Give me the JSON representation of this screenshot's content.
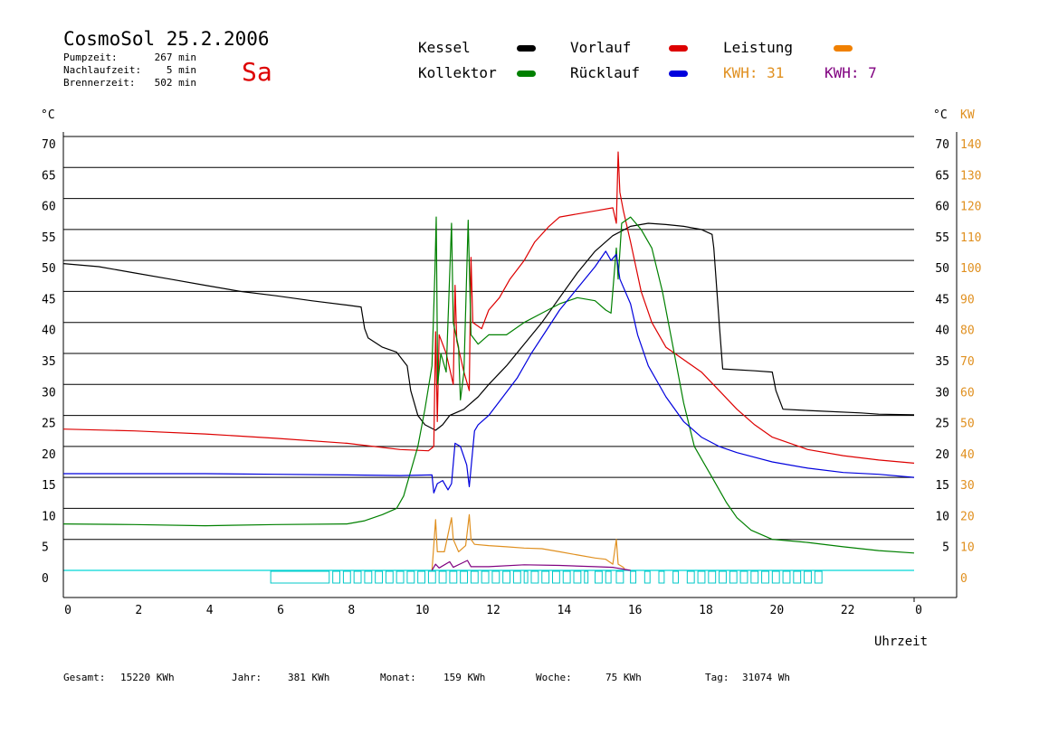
{
  "header": {
    "title": "CosmoSol 25.2.2006",
    "day": "Sa",
    "stats": [
      {
        "label": "Pumpzeit:",
        "value": "267 min"
      },
      {
        "label": "Nachlaufzeit:",
        "value": "5 min"
      },
      {
        "label": "Brennerzeit:",
        "value": "502 min"
      }
    ]
  },
  "legend": [
    {
      "name": "Kessel",
      "color": "#000000"
    },
    {
      "name": "Vorlauf",
      "color": "#dd0000"
    },
    {
      "name": "Leistung",
      "color": "#f08000"
    },
    {
      "name": "Kollektor",
      "color": "#008000"
    },
    {
      "name": "Rücklauf",
      "color": "#0000dd"
    }
  ],
  "kwh": [
    {
      "label": "KWH:",
      "value": "31",
      "color": "#e09020"
    },
    {
      "label": "KWH:",
      "value": "7",
      "color": "#800080"
    }
  ],
  "footer": [
    {
      "label": "Gesamt:",
      "value": "15220 KWh"
    },
    {
      "label": "Jahr:",
      "value": "381 KWh"
    },
    {
      "label": "Monat:",
      "value": "159 KWh"
    },
    {
      "label": "Woche:",
      "value": "75 KWh"
    },
    {
      "label": "Tag:",
      "value": "31074 Wh"
    }
  ],
  "chart_data": {
    "type": "line",
    "xlabel": "Uhrzeit",
    "ylabel_left": "°C",
    "ylabel_right_temp": "°C",
    "ylabel_right_power": "KW",
    "xlim": [
      0,
      24
    ],
    "ylim": [
      0,
      70
    ],
    "y2lim": [
      0,
      140
    ],
    "x_ticks": [
      "0",
      "2",
      "4",
      "6",
      "8",
      "10",
      "12",
      "14",
      "16",
      "18",
      "20",
      "22",
      "0"
    ],
    "y_ticks": [
      0,
      5,
      10,
      15,
      20,
      25,
      30,
      35,
      40,
      45,
      50,
      55,
      60,
      65,
      70
    ],
    "y2_ticks": [
      0,
      10,
      20,
      30,
      40,
      50,
      60,
      70,
      80,
      90,
      100,
      110,
      120,
      130,
      140
    ],
    "y_right_temp_ticks": [
      5,
      10,
      15,
      20,
      25,
      30,
      35,
      40,
      45,
      50,
      55,
      60,
      65,
      70
    ],
    "grid": true,
    "series": [
      {
        "name": "Kessel",
        "color": "#000000",
        "points": [
          [
            0,
            49.5
          ],
          [
            1,
            49
          ],
          [
            2,
            48
          ],
          [
            3,
            47
          ],
          [
            4,
            46
          ],
          [
            5,
            45
          ],
          [
            6,
            44.3
          ],
          [
            7,
            43.5
          ],
          [
            8,
            42.8
          ],
          [
            8.4,
            42.5
          ],
          [
            8.5,
            39
          ],
          [
            8.6,
            37.5
          ],
          [
            9,
            36
          ],
          [
            9.4,
            35.2
          ],
          [
            9.7,
            33
          ],
          [
            9.8,
            29
          ],
          [
            10,
            25
          ],
          [
            10.2,
            23.5
          ],
          [
            10.5,
            22.6
          ],
          [
            10.7,
            23.5
          ],
          [
            10.9,
            25
          ],
          [
            11.3,
            26
          ],
          [
            11.7,
            28
          ],
          [
            12,
            30
          ],
          [
            12.5,
            33
          ],
          [
            13,
            36.5
          ],
          [
            13.5,
            40
          ],
          [
            14,
            44
          ],
          [
            14.5,
            48
          ],
          [
            15,
            51.5
          ],
          [
            15.5,
            54
          ],
          [
            16,
            55.5
          ],
          [
            16.5,
            56
          ],
          [
            17,
            55.8
          ],
          [
            17.5,
            55.5
          ],
          [
            18,
            55
          ],
          [
            18.3,
            54.2
          ],
          [
            18.35,
            52
          ],
          [
            18.5,
            40
          ],
          [
            18.6,
            32.5
          ],
          [
            19.5,
            32.2
          ],
          [
            20,
            32
          ],
          [
            20.1,
            29
          ],
          [
            20.3,
            26
          ],
          [
            21,
            25.8
          ],
          [
            22.5,
            25.4
          ],
          [
            23,
            25.2
          ],
          [
            24,
            25.1
          ]
        ]
      },
      {
        "name": "Vorlauf",
        "color": "#dd0000",
        "points": [
          [
            0,
            22.8
          ],
          [
            2,
            22.5
          ],
          [
            4,
            22
          ],
          [
            6,
            21.3
          ],
          [
            8,
            20.5
          ],
          [
            9.5,
            19.5
          ],
          [
            10.3,
            19.3
          ],
          [
            10.45,
            20
          ],
          [
            10.5,
            38.5
          ],
          [
            10.55,
            24
          ],
          [
            10.6,
            38
          ],
          [
            10.8,
            35
          ],
          [
            11,
            30
          ],
          [
            11.05,
            46
          ],
          [
            11.1,
            37
          ],
          [
            11.3,
            32
          ],
          [
            11.45,
            29
          ],
          [
            11.5,
            50.5
          ],
          [
            11.55,
            40
          ],
          [
            11.8,
            39
          ],
          [
            12,
            42
          ],
          [
            12.3,
            44
          ],
          [
            12.6,
            47
          ],
          [
            13,
            50
          ],
          [
            13.3,
            53
          ],
          [
            13.7,
            55.5
          ],
          [
            14,
            57
          ],
          [
            14.5,
            57.5
          ],
          [
            15,
            58
          ],
          [
            15.5,
            58.5
          ],
          [
            15.6,
            56
          ],
          [
            15.65,
            67.5
          ],
          [
            15.7,
            61
          ],
          [
            15.8,
            58
          ],
          [
            16,
            53
          ],
          [
            16.3,
            45
          ],
          [
            16.6,
            40
          ],
          [
            17,
            36
          ],
          [
            17.5,
            34
          ],
          [
            18,
            32
          ],
          [
            18.5,
            29
          ],
          [
            19,
            26
          ],
          [
            19.5,
            23.5
          ],
          [
            20,
            21.5
          ],
          [
            21,
            19.5
          ],
          [
            22,
            18.5
          ],
          [
            23,
            17.8
          ],
          [
            24,
            17.3
          ]
        ]
      },
      {
        "name": "Kollektor",
        "color": "#008000",
        "points": [
          [
            0,
            7.5
          ],
          [
            2,
            7.4
          ],
          [
            4,
            7.2
          ],
          [
            6,
            7.4
          ],
          [
            8,
            7.5
          ],
          [
            8.5,
            8
          ],
          [
            9,
            9
          ],
          [
            9.4,
            10
          ],
          [
            9.6,
            12
          ],
          [
            9.8,
            16
          ],
          [
            10,
            20
          ],
          [
            10.2,
            26
          ],
          [
            10.4,
            33
          ],
          [
            10.48,
            48
          ],
          [
            10.52,
            57
          ],
          [
            10.56,
            30
          ],
          [
            10.65,
            35
          ],
          [
            10.8,
            32
          ],
          [
            10.95,
            56
          ],
          [
            11,
            40
          ],
          [
            11.15,
            36
          ],
          [
            11.2,
            27.5
          ],
          [
            11.3,
            32
          ],
          [
            11.42,
            56.5
          ],
          [
            11.5,
            38
          ],
          [
            11.7,
            36.5
          ],
          [
            12,
            38
          ],
          [
            12.5,
            38
          ],
          [
            13,
            40
          ],
          [
            13.5,
            41.5
          ],
          [
            14,
            43
          ],
          [
            14.5,
            44
          ],
          [
            15,
            43.5
          ],
          [
            15.3,
            42
          ],
          [
            15.45,
            41.5
          ],
          [
            15.6,
            52
          ],
          [
            15.65,
            47
          ],
          [
            15.75,
            56
          ],
          [
            16,
            57
          ],
          [
            16.3,
            55
          ],
          [
            16.6,
            52
          ],
          [
            16.9,
            45
          ],
          [
            17.2,
            36
          ],
          [
            17.5,
            27
          ],
          [
            17.8,
            20
          ],
          [
            18,
            18
          ],
          [
            18.3,
            15
          ],
          [
            18.7,
            11
          ],
          [
            19,
            8.5
          ],
          [
            19.4,
            6.5
          ],
          [
            20,
            5
          ],
          [
            21,
            4.5
          ],
          [
            22,
            3.8
          ],
          [
            23,
            3.2
          ],
          [
            24,
            2.8
          ]
        ]
      },
      {
        "name": "Rücklauf",
        "color": "#0000dd",
        "points": [
          [
            0,
            15.6
          ],
          [
            2,
            15.6
          ],
          [
            4,
            15.6
          ],
          [
            6,
            15.5
          ],
          [
            8,
            15.4
          ],
          [
            9.5,
            15.3
          ],
          [
            10.4,
            15.4
          ],
          [
            10.45,
            12.5
          ],
          [
            10.55,
            14
          ],
          [
            10.7,
            14.5
          ],
          [
            10.85,
            13
          ],
          [
            10.95,
            14
          ],
          [
            11.05,
            20.5
          ],
          [
            11.2,
            20
          ],
          [
            11.38,
            17
          ],
          [
            11.45,
            13.5
          ],
          [
            11.6,
            22.5
          ],
          [
            11.7,
            23.5
          ],
          [
            12,
            25
          ],
          [
            12.4,
            28
          ],
          [
            12.8,
            31
          ],
          [
            13.2,
            35
          ],
          [
            13.6,
            38.5
          ],
          [
            14,
            42
          ],
          [
            14.5,
            45.5
          ],
          [
            15,
            49
          ],
          [
            15.3,
            51.5
          ],
          [
            15.45,
            50
          ],
          [
            15.6,
            51
          ],
          [
            15.7,
            47
          ],
          [
            16,
            43
          ],
          [
            16.2,
            38
          ],
          [
            16.5,
            33
          ],
          [
            17,
            28
          ],
          [
            17.5,
            24
          ],
          [
            18,
            21.5
          ],
          [
            18.5,
            20
          ],
          [
            19,
            19
          ],
          [
            20,
            17.5
          ],
          [
            21,
            16.5
          ],
          [
            22,
            15.8
          ],
          [
            23,
            15.5
          ],
          [
            24,
            15
          ]
        ]
      },
      {
        "name": "Leistung",
        "color": "#e09020",
        "points": [
          [
            10.4,
            0
          ],
          [
            10.45,
            4
          ],
          [
            10.5,
            8.2
          ],
          [
            10.55,
            3
          ],
          [
            10.75,
            3
          ],
          [
            10.95,
            8.5
          ],
          [
            11,
            5
          ],
          [
            11.15,
            3
          ],
          [
            11.35,
            4
          ],
          [
            11.45,
            9
          ],
          [
            11.5,
            5
          ],
          [
            11.6,
            4.2
          ],
          [
            12,
            4
          ],
          [
            12.5,
            3.8
          ],
          [
            13,
            3.6
          ],
          [
            13.5,
            3.5
          ],
          [
            14,
            3
          ],
          [
            14.5,
            2.5
          ],
          [
            15,
            2
          ],
          [
            15.3,
            1.8
          ],
          [
            15.5,
            1
          ],
          [
            15.6,
            5
          ],
          [
            15.65,
            1
          ],
          [
            15.8,
            0.5
          ],
          [
            15.85,
            0
          ]
        ]
      },
      {
        "name": "KWH purple",
        "color": "#800080",
        "points": [
          [
            10.4,
            0
          ],
          [
            10.5,
            1
          ],
          [
            10.6,
            0.4
          ],
          [
            10.9,
            1.4
          ],
          [
            11,
            0.5
          ],
          [
            11.4,
            1.6
          ],
          [
            11.5,
            0.6
          ],
          [
            12,
            0.6
          ],
          [
            13,
            0.9
          ],
          [
            14,
            0.8
          ],
          [
            15,
            0.6
          ],
          [
            15.5,
            0.5
          ],
          [
            15.6,
            0.4
          ],
          [
            15.8,
            0.2
          ],
          [
            16,
            0
          ]
        ]
      }
    ],
    "pump_segments": [
      [
        5.85,
        7.5
      ],
      [
        7.6,
        7.8
      ],
      [
        7.9,
        8.1
      ],
      [
        8.2,
        8.4
      ],
      [
        8.5,
        8.7
      ],
      [
        8.8,
        9.0
      ],
      [
        9.1,
        9.3
      ],
      [
        9.4,
        9.6
      ],
      [
        9.7,
        9.9
      ],
      [
        10.0,
        10.2
      ],
      [
        10.3,
        10.5
      ],
      [
        10.6,
        10.8
      ],
      [
        10.9,
        11.1
      ],
      [
        11.2,
        11.4
      ],
      [
        11.5,
        11.7
      ],
      [
        11.8,
        12.0
      ],
      [
        12.1,
        12.3
      ],
      [
        12.4,
        12.6
      ],
      [
        12.7,
        12.9
      ],
      [
        13.0,
        13.1
      ],
      [
        13.2,
        13.4
      ],
      [
        13.5,
        13.7
      ],
      [
        13.8,
        14.0
      ],
      [
        14.1,
        14.3
      ],
      [
        14.4,
        14.6
      ],
      [
        14.7,
        14.8
      ],
      [
        15.0,
        15.2
      ],
      [
        15.3,
        15.45
      ],
      [
        15.6,
        15.8
      ],
      [
        16.0,
        16.15
      ],
      [
        16.4,
        16.55
      ],
      [
        16.8,
        16.95
      ],
      [
        17.2,
        17.35
      ],
      [
        17.6,
        17.8
      ],
      [
        17.9,
        18.1
      ],
      [
        18.2,
        18.4
      ],
      [
        18.5,
        18.7
      ],
      [
        18.8,
        19.0
      ],
      [
        19.1,
        19.3
      ],
      [
        19.4,
        19.6
      ],
      [
        19.7,
        19.9
      ],
      [
        20.0,
        20.2
      ],
      [
        20.3,
        20.5
      ],
      [
        20.6,
        20.8
      ],
      [
        20.9,
        21.1
      ],
      [
        21.2,
        21.4
      ]
    ]
  }
}
